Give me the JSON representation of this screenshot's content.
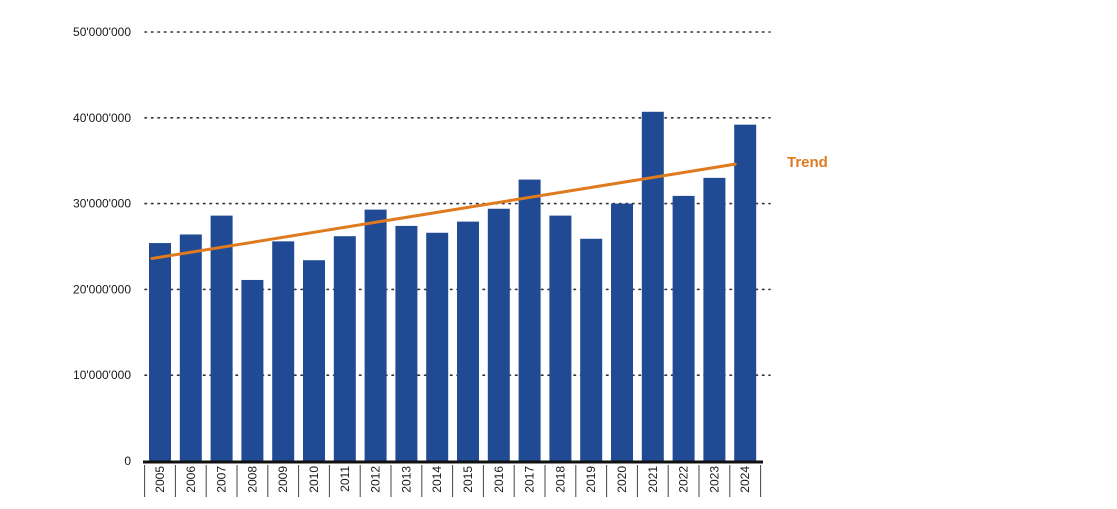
{
  "chart_data": {
    "type": "bar",
    "categories": [
      "2005",
      "2006",
      "2007",
      "2008",
      "2009",
      "2010",
      "2011",
      "2012",
      "2013",
      "2014",
      "2015",
      "2016",
      "2017",
      "2018",
      "2019",
      "2020",
      "2021",
      "2022",
      "2023",
      "2024"
    ],
    "values": [
      25400000,
      26400000,
      28600000,
      21100000,
      25600000,
      23400000,
      26200000,
      29300000,
      27400000,
      26600000,
      27900000,
      29400000,
      32800000,
      28600000,
      25900000,
      30000000,
      40700000,
      30900000,
      33000000,
      39200000
    ],
    "ylim": [
      0,
      50000000
    ],
    "yticks": [
      0,
      10000000,
      20000000,
      30000000,
      40000000,
      50000000
    ],
    "ytick_labels": [
      "0",
      "10'000'000",
      "20'000'000",
      "30'000'000",
      "40'000'000",
      "50'000'000"
    ],
    "grid": true,
    "trend": {
      "label": "Trend",
      "start": 23600000,
      "end": 34600000
    },
    "colors": {
      "bar": "#204b94",
      "trend": "#e07a1f",
      "axis": "#111111",
      "grid": "#333333"
    }
  }
}
